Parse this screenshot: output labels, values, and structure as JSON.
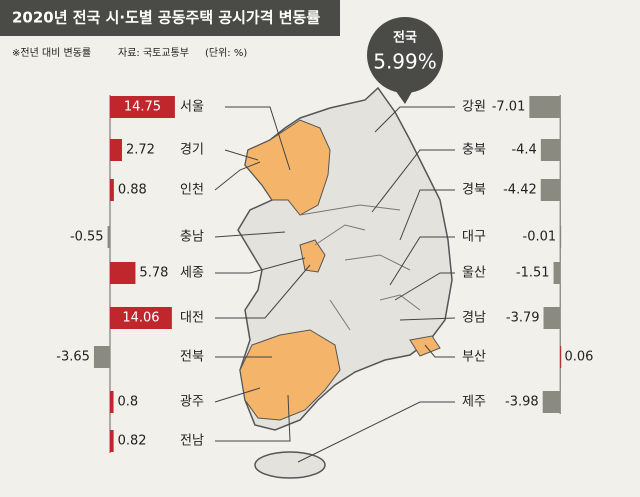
{
  "chart_data": [
    {
      "type": "bar",
      "orientation": "horizontal",
      "title": "2020년 전국 시·도별 공동주택 공시가격 변동률",
      "subtitle": "※전년 대비 변동률",
      "source": "자료: 국토교통부",
      "unit": "(단위: %)",
      "categories": [
        "서울",
        "경기",
        "인천",
        "충남",
        "세종",
        "대전",
        "전북",
        "광주",
        "전남"
      ],
      "values": [
        14.75,
        2.72,
        0.88,
        -0.55,
        5.78,
        14.06,
        -3.65,
        0.8,
        0.82
      ],
      "positive_color": "#c0272d",
      "negative_color": "#8a8a80",
      "xlim": [
        -5,
        15
      ]
    },
    {
      "type": "bar",
      "orientation": "horizontal",
      "categories": [
        "강원",
        "충북",
        "경북",
        "대구",
        "울산",
        "경남",
        "부산",
        "제주"
      ],
      "values": [
        -7.01,
        -4.4,
        -4.42,
        -0.01,
        -1.51,
        -3.79,
        0.06,
        -3.98
      ],
      "positive_color": "#c0272d",
      "negative_color": "#8a8a80",
      "xlim": [
        -8,
        2
      ]
    }
  ],
  "national": {
    "label": "전국",
    "value": 5.99,
    "value_label": "5.99%"
  }
}
